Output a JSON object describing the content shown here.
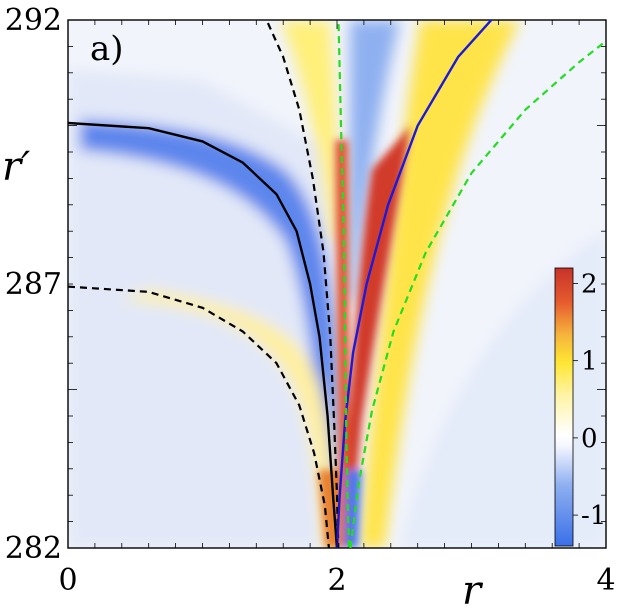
{
  "chart_data": {
    "type": "heatmap",
    "panel_label": "a)",
    "xlabel": "r",
    "ylabel": "r′",
    "xlim": [
      0,
      4
    ],
    "ylim": [
      282,
      292
    ],
    "x_ticks": [
      {
        "value": 0,
        "label": "0"
      },
      {
        "value": 2,
        "label": "2"
      },
      {
        "value": 4,
        "label": "4"
      }
    ],
    "y_ticks": [
      {
        "value": 282,
        "label": "282"
      },
      {
        "value": 287,
        "label": "287"
      },
      {
        "value": 292,
        "label": "292"
      }
    ],
    "colorbar": {
      "range": [
        -1.4,
        2.2
      ],
      "ticks": [
        {
          "value": 2,
          "label": "2"
        },
        {
          "value": 1,
          "label": "1"
        },
        {
          "value": 0,
          "label": "0"
        },
        {
          "value": -1,
          "label": "-1"
        }
      ],
      "colors": [
        "#3a6fe8",
        "#8fb0f0",
        "#f5f7ff",
        "#ffffff",
        "#fff3a0",
        "#ffe632",
        "#f5b43c",
        "#e55a2e",
        "#c8322a"
      ]
    },
    "curves": [
      {
        "style": "solid",
        "color": "#000000",
        "points": [
          [
            0,
            290.05
          ],
          [
            0.6,
            289.95
          ],
          [
            1.0,
            289.7
          ],
          [
            1.3,
            289.3
          ],
          [
            1.55,
            288.7
          ],
          [
            1.7,
            288.0
          ],
          [
            1.8,
            287.0
          ],
          [
            1.87,
            286.0
          ],
          [
            1.93,
            284.5
          ],
          [
            1.97,
            283.0
          ],
          [
            2.0,
            282.0
          ]
        ]
      },
      {
        "style": "dashed",
        "color": "#000000",
        "points": [
          [
            0,
            286.95
          ],
          [
            0.6,
            286.85
          ],
          [
            1.0,
            286.55
          ],
          [
            1.3,
            286.1
          ],
          [
            1.55,
            285.5
          ],
          [
            1.72,
            284.7
          ],
          [
            1.83,
            283.8
          ],
          [
            1.91,
            282.8
          ],
          [
            1.94,
            282.0
          ]
        ]
      },
      {
        "style": "dashed",
        "color": "#000000",
        "points": [
          [
            1.45,
            292.15
          ],
          [
            1.6,
            291.3
          ],
          [
            1.72,
            290.3
          ],
          [
            1.82,
            289.0
          ],
          [
            1.9,
            287.6
          ],
          [
            1.95,
            286.0
          ],
          [
            1.98,
            284.3
          ],
          [
            2.0,
            283.0
          ],
          [
            2.01,
            282.0
          ]
        ]
      },
      {
        "style": "solid",
        "color": "#1a1adc",
        "points": [
          [
            2.0,
            282.0
          ],
          [
            2.02,
            283.0
          ],
          [
            2.06,
            284.4
          ],
          [
            2.12,
            285.7
          ],
          [
            2.22,
            287.0
          ],
          [
            2.38,
            288.5
          ],
          [
            2.6,
            290.0
          ],
          [
            2.9,
            291.3
          ],
          [
            3.2,
            292.15
          ]
        ]
      },
      {
        "style": "dashed",
        "color": "#22dd22",
        "points": [
          [
            2.01,
            292.15
          ],
          [
            2.03,
            290.0
          ],
          [
            2.05,
            288.0
          ],
          [
            2.06,
            286.0
          ],
          [
            2.07,
            284.0
          ],
          [
            2.08,
            282.8
          ],
          [
            2.09,
            282.0
          ]
        ]
      },
      {
        "style": "dashed",
        "color": "#22dd22",
        "points": [
          [
            2.1,
            282.0
          ],
          [
            2.16,
            283.2
          ],
          [
            2.26,
            284.6
          ],
          [
            2.42,
            286.1
          ],
          [
            2.66,
            287.6
          ],
          [
            3.0,
            289.1
          ],
          [
            3.4,
            290.3
          ],
          [
            3.8,
            291.2
          ],
          [
            4.05,
            291.7
          ]
        ]
      }
    ]
  }
}
